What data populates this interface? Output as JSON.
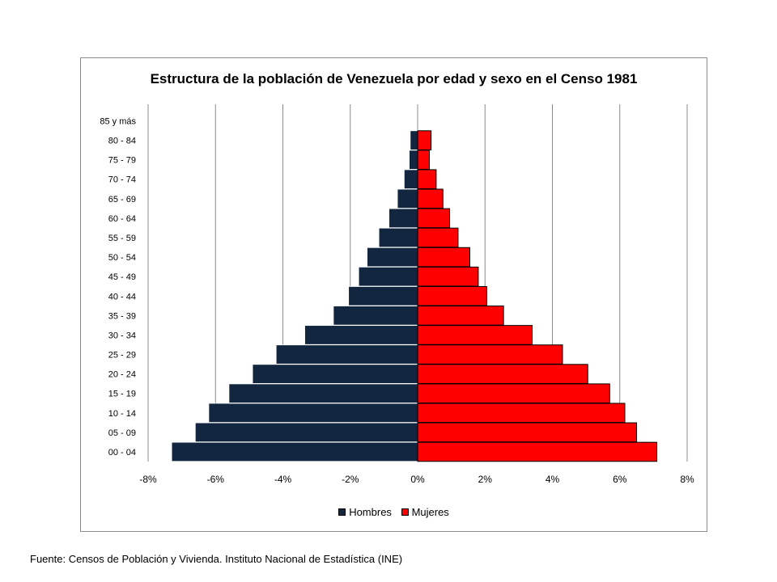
{
  "chart_data": {
    "type": "bar",
    "orientation": "horizontal",
    "title": "Estructura de la población de Venezuela por edad y sexo en el Censo 1981",
    "categories": [
      "00 - 04",
      "05 - 09",
      "10 - 14",
      "15 - 19",
      "20 - 24",
      "25 - 29",
      "30 - 34",
      "35 - 39",
      "40 - 44",
      "45 - 49",
      "50 - 54",
      "55 - 59",
      "60 - 64",
      "65 - 69",
      "70 - 74",
      "75 - 79",
      "80 - 84",
      "85 y más"
    ],
    "series": [
      {
        "name": "Hombres",
        "color": "#132640",
        "values": [
          -7.3,
          -6.6,
          -6.2,
          -5.6,
          -4.9,
          -4.2,
          -3.35,
          -2.5,
          -2.05,
          -1.75,
          -1.5,
          -1.15,
          -0.85,
          -0.6,
          -0.4,
          -0.25,
          -0.22,
          0
        ]
      },
      {
        "name": "Mujeres",
        "color": "#ff0000",
        "values": [
          7.1,
          6.5,
          6.15,
          5.7,
          5.05,
          4.3,
          3.4,
          2.55,
          2.05,
          1.8,
          1.55,
          1.2,
          0.95,
          0.75,
          0.55,
          0.35,
          0.4,
          0
        ]
      }
    ],
    "xlim": [
      -8,
      8
    ],
    "xticks": [
      "-8%",
      "-6%",
      "-4%",
      "-2%",
      "0%",
      "2%",
      "4%",
      "6%",
      "8%"
    ],
    "xlabel": "",
    "ylabel": "",
    "grid": "vertical",
    "legend_position": "bottom"
  },
  "source_note": "Fuente: Censos de Población y Vivienda. Instituto Nacional de Estadística (INE)"
}
